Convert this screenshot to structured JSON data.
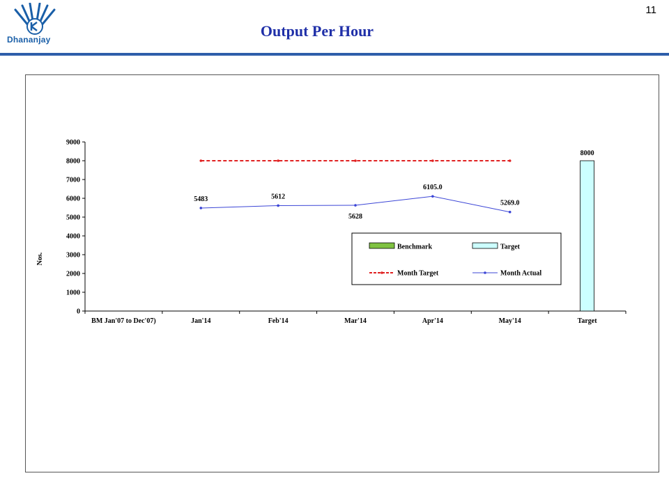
{
  "header": {
    "logo_text": "Dhananjay",
    "title": "Output Per Hour",
    "page_number": "11",
    "colors": {
      "title": "#1f2fa8",
      "rule": "#2e5eaa",
      "logo": "#1a5fa8"
    }
  },
  "chart_data": {
    "type": "bar",
    "title": "",
    "xlabel": "",
    "ylabel": "Nos.",
    "ylim": [
      0,
      9000
    ],
    "yticks": [
      0,
      1000,
      2000,
      3000,
      4000,
      5000,
      6000,
      7000,
      8000,
      9000
    ],
    "categories": [
      "BM Jan'07 to Dec'07)",
      "Jan'14",
      "Feb'14",
      "Mar'14",
      "Apr'14",
      "May'14",
      "Target"
    ],
    "grid": false,
    "series": [
      {
        "name": "Benchmark",
        "kind": "bar",
        "color": "#7fc241",
        "values": [
          null,
          null,
          null,
          null,
          null,
          null,
          null
        ]
      },
      {
        "name": "Target",
        "kind": "bar",
        "color": "#ccffff",
        "values": [
          null,
          null,
          null,
          null,
          null,
          null,
          8000
        ],
        "labels": [
          null,
          null,
          null,
          null,
          null,
          null,
          "8000"
        ]
      },
      {
        "name": "Month Target",
        "kind": "line",
        "style": "dashed",
        "color": "#e02020",
        "values": [
          null,
          8000,
          8000,
          8000,
          8000,
          8000,
          null
        ]
      },
      {
        "name": "Month Actual",
        "kind": "line",
        "style": "solid",
        "color": "#3b45d6",
        "values": [
          null,
          5483,
          5612,
          5628,
          6105,
          5269,
          null
        ],
        "labels": [
          null,
          "5483",
          "5612",
          "5628",
          "6105.0",
          "5269.0",
          null
        ]
      }
    ],
    "legend": {
      "placement": "bottom-right",
      "items": [
        "Benchmark",
        "Target",
        "Month Target",
        "Month Actual"
      ]
    }
  }
}
